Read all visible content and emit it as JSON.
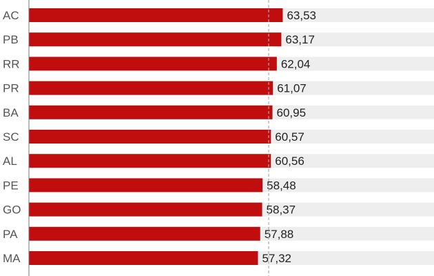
{
  "chart_data": {
    "type": "bar",
    "orientation": "horizontal",
    "categories": [
      "AC",
      "PB",
      "RR",
      "PR",
      "BA",
      "SC",
      "AL",
      "PE",
      "GO",
      "PA",
      "MA"
    ],
    "values": [
      63.53,
      63.17,
      62.04,
      61.07,
      60.95,
      60.57,
      60.56,
      58.48,
      58.37,
      57.88,
      57.32
    ],
    "value_labels": [
      "63,53",
      "63,17",
      "62,04",
      "61,07",
      "60,95",
      "60,57",
      "60,56",
      "58,48",
      "58,37",
      "57,88",
      "57,32"
    ],
    "xlim": [
      0,
      100
    ],
    "reference_line": 60.0,
    "title": "",
    "xlabel": "",
    "ylabel": "",
    "grid": false,
    "colors": {
      "bar": "#c00d0d",
      "track": "#eeeeee",
      "reference": "#aaaaaa"
    }
  }
}
